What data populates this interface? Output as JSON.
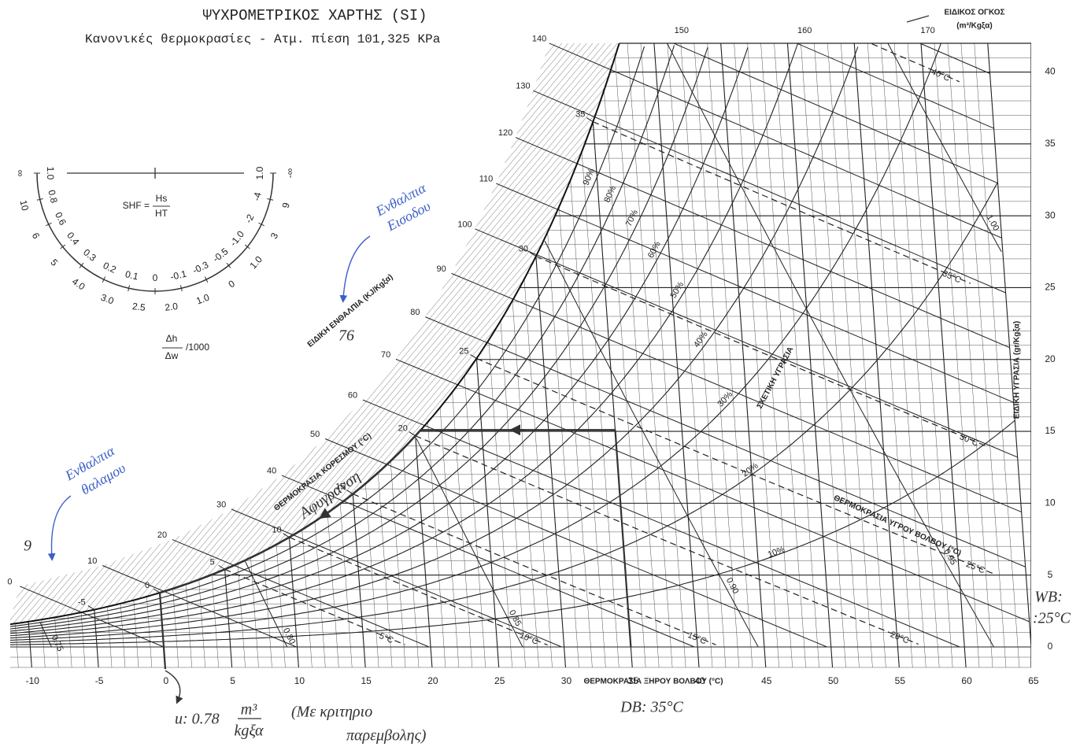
{
  "chart_data": {
    "type": "psychrometric",
    "title": "ΨΥΧΡΟΜΕΤΡΙΚΟΣ ΧΑΡΤΗΣ (SI)",
    "subtitle": "Κανονικές θερμοκρασίες - Ατμ. πίεση",
    "pressure": {
      "value": 101.325,
      "label": "101,325"
    },
    "pressure_unit": "KPa",
    "x_label": "ΘΕΡΜΟΚΡΑΣΙΑ ΞΗΡΟΥ ΒΟΛΒΟΥ (°C)",
    "y_label": "ΕΙΔΙΚΗ ΥΓΡΑΣΙΑ (gr/Kgξα)",
    "xlim": [
      -11.5,
      65
    ],
    "xticks": [
      -10,
      -5,
      0,
      5,
      10,
      15,
      20,
      25,
      30,
      35,
      40,
      45,
      50,
      55,
      60,
      65
    ],
    "ylim": [
      0,
      42
    ],
    "yticks": [
      0,
      5,
      10,
      15,
      20,
      25,
      30,
      35,
      40
    ],
    "grid": true,
    "enthalpy_label": "ΕΙΔΙΚΗ ΕΝΘΑΛΠΙΑ (KJ/Kgξα)",
    "enthalpy_ticks": [
      0,
      10,
      20,
      30,
      40,
      50,
      60,
      70,
      80,
      90,
      100,
      110,
      120,
      130,
      140,
      150,
      160,
      170
    ],
    "saturation_label": "ΘΕΡΜΟΚΡΑΣΙΑ ΚΟΡΕΣΜΟΥ (°C)",
    "saturation_ticks": [
      -5,
      0,
      5,
      10,
      15,
      20,
      25,
      30,
      35
    ],
    "rh_label": "ΣΧΕΤΙΚΗ ΥΓΡΑΣΙΑ",
    "rh_lines": [
      {
        "value": 10,
        "label": "10%"
      },
      {
        "value": 20,
        "label": "20%"
      },
      {
        "value": 30,
        "label": "30%"
      },
      {
        "value": 40,
        "label": "40%"
      },
      {
        "value": 50,
        "label": "50%"
      },
      {
        "value": 60,
        "label": "60%"
      },
      {
        "value": 70,
        "label": "70%"
      },
      {
        "value": 80,
        "label": "80%"
      },
      {
        "value": 90,
        "label": "90%"
      }
    ],
    "wb_label": "ΘΕΡΜΟΚΡΑΣΙΑ ΥΓΡΟΥ ΒΟΛΒΟΥ (°C)",
    "wb_lines": [
      {
        "value": 5,
        "label": "5°C"
      },
      {
        "value": 10,
        "label": "10°C"
      },
      {
        "value": 15,
        "label": "15°C"
      },
      {
        "value": 20,
        "label": "20°C"
      },
      {
        "value": 25,
        "label": "25°C"
      },
      {
        "value": 30,
        "label": "30°C"
      },
      {
        "value": 35,
        "label": "35°C"
      },
      {
        "value": 40,
        "label": "40°C"
      }
    ],
    "volume_label": "ΕΙΔΙΚΟΣ ΟΓΚΟΣ",
    "volume_unit": "(m³/Kgξα)",
    "volume_lines": [
      {
        "value": 0.75,
        "label": "0.75"
      },
      {
        "value": 0.8,
        "label": "0.80"
      },
      {
        "value": 0.85,
        "label": "0.85"
      },
      {
        "value": 0.9,
        "label": "0.90"
      },
      {
        "value": 0.95,
        "label": "0.95"
      },
      {
        "value": 1,
        "label": "1.00"
      }
    ],
    "process": {
      "db": 35,
      "w": 15.1,
      "t_end": 0
    }
  },
  "shf": {
    "formula": "SHF =",
    "hs": "Hs",
    "ht": "HT",
    "ratio_num": "Δh",
    "ratio_den": "Δw",
    "ratio_tail": "/1000",
    "inner": [
      "1.0",
      "0.8",
      "0.6",
      "0.4",
      "0.3",
      "0.2",
      "0.1",
      "0",
      "-0.1",
      "-0.3",
      "-0.5",
      "-1.0",
      "-2",
      "-4",
      "1.0"
    ],
    "outer": [
      "∞",
      "10",
      "6",
      "5",
      "4.0",
      "3.0",
      "2.5",
      "2.0",
      "1.0",
      "0",
      "1.0",
      "3",
      "9",
      "-∞"
    ]
  },
  "notes": {
    "inlet_enthalpy_1": "Ενθαλπια",
    "inlet_enthalpy_2": "Εισοδου",
    "inlet_value": "76",
    "room_enthalpy_1": "Ενθαλπια",
    "room_enthalpy_2": "θαλαμου",
    "room_value": "9",
    "process_name": "Αφυγρανση",
    "wb": "WB:",
    "wb_value": ":25°C",
    "db": "DB: 35°C",
    "u": "u: 0.78",
    "u_num": "m³",
    "u_den": "kgξα",
    "criterion_1": "(Με κριτηριο",
    "criterion_2": "παρεμβολης)"
  }
}
